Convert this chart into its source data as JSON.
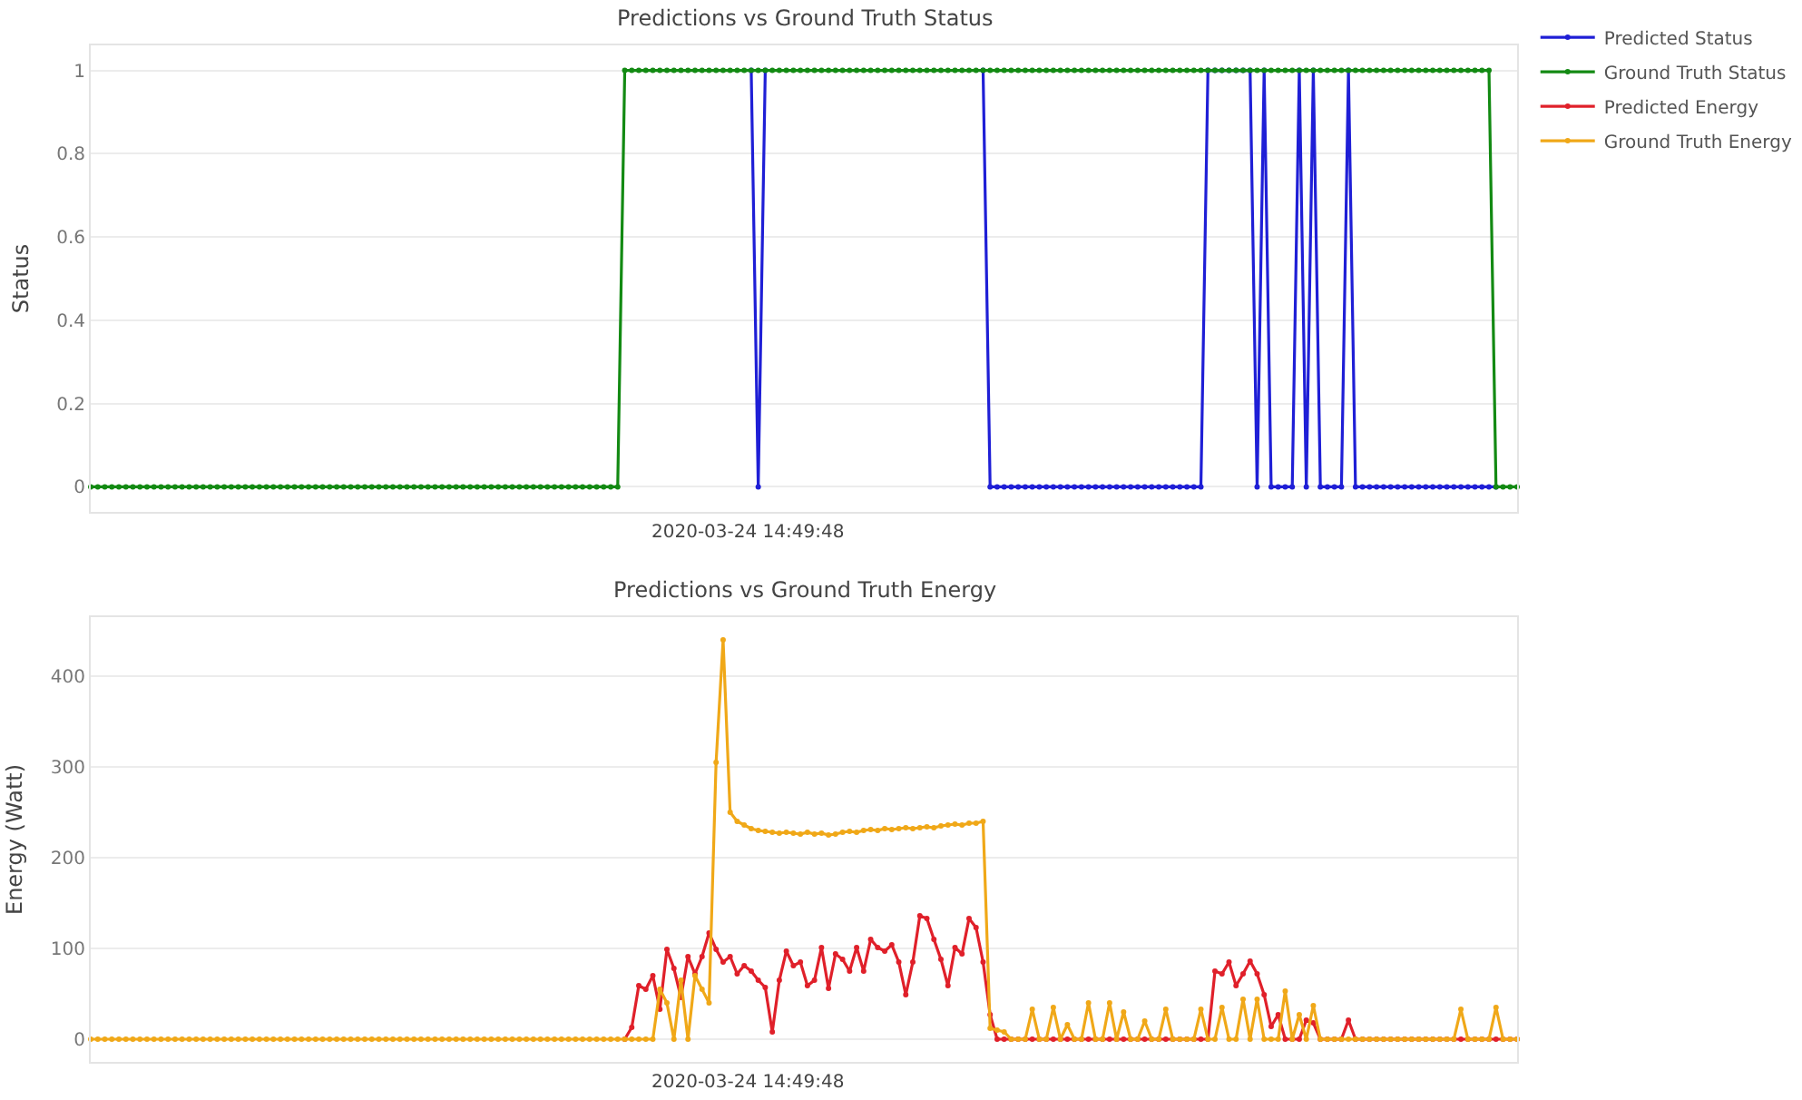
{
  "chart_data": [
    {
      "type": "line",
      "title": "Predictions vs Ground Truth Status",
      "ylabel": "Status",
      "categories": [
        null,
        null,
        null,
        null,
        null,
        null,
        null,
        null,
        null,
        null,
        null,
        null,
        null,
        null,
        null,
        null,
        null,
        null,
        null,
        null,
        null,
        null,
        null,
        null,
        null,
        null,
        null,
        null,
        null,
        null,
        null,
        null,
        null,
        null,
        null,
        null,
        null,
        null,
        null,
        null,
        null,
        null,
        null,
        null,
        null,
        null,
        null,
        null,
        null,
        null,
        null,
        null,
        null,
        null,
        null,
        null,
        null,
        null,
        null,
        null,
        null,
        null,
        null,
        null,
        null,
        null,
        null,
        null,
        null,
        null,
        null,
        null,
        null,
        null,
        null,
        null,
        null,
        null,
        null,
        null,
        null,
        null,
        null,
        null,
        null,
        null,
        null,
        null,
        null,
        null,
        null,
        null,
        null,
        null,
        null,
        null,
        null,
        null,
        null,
        null,
        null,
        null,
        null,
        null,
        null,
        null,
        null,
        null,
        null,
        null,
        null,
        null,
        null,
        null,
        null,
        null,
        null,
        null,
        null,
        null,
        null,
        null,
        null,
        null,
        null,
        null,
        null,
        null,
        null,
        null,
        null,
        null,
        null,
        null,
        null,
        null,
        null,
        null,
        null,
        null,
        null,
        null,
        null,
        null,
        null,
        null,
        null,
        null,
        null,
        null,
        null,
        null,
        null,
        null,
        null,
        null,
        null,
        null,
        null,
        null,
        null,
        null,
        null,
        null,
        null,
        null,
        null,
        null,
        null,
        null,
        null,
        null,
        null,
        null,
        null,
        null,
        null,
        null,
        null,
        null,
        null,
        null,
        null,
        null,
        null,
        null,
        null,
        null,
        null,
        null,
        null,
        null,
        null,
        null,
        null,
        null,
        null,
        null,
        null,
        null,
        null,
        null,
        null,
        null
      ],
      "ylim": [
        -0.06,
        1.06
      ],
      "yticks": [
        0,
        0.2,
        0.4,
        0.6,
        0.8,
        1
      ],
      "grid": "y",
      "legend": "top right",
      "tick_labels": "y",
      "marker": "circle",
      "line_style": "solid",
      "annotations": [
        "2020-03-24 14:49:48"
      ],
      "series": [
        {
          "name": "Predicted Status",
          "color": "#1f1fd6",
          "values": [
            null,
            null,
            null,
            null,
            null,
            null,
            null,
            null,
            null,
            null,
            null,
            null,
            null,
            null,
            null,
            null,
            null,
            null,
            null,
            null,
            null,
            null,
            null,
            null,
            null,
            null,
            null,
            null,
            null,
            null,
            null,
            null,
            null,
            null,
            null,
            null,
            null,
            null,
            null,
            null,
            null,
            null,
            null,
            null,
            null,
            null,
            null,
            null,
            null,
            null,
            null,
            null,
            null,
            null,
            null,
            null,
            null,
            null,
            null,
            null,
            null,
            null,
            null,
            null,
            null,
            null,
            null,
            null,
            null,
            null,
            null,
            null,
            null,
            null,
            null,
            null,
            null,
            null,
            null,
            null,
            null,
            null,
            null,
            null,
            null,
            null,
            null,
            null,
            null,
            null,
            null,
            null,
            null,
            null,
            1,
            0,
            1,
            null,
            null,
            null,
            null,
            null,
            null,
            null,
            null,
            null,
            null,
            null,
            null,
            null,
            null,
            null,
            null,
            null,
            null,
            null,
            null,
            null,
            null,
            null,
            null,
            null,
            null,
            null,
            null,
            null,
            null,
            1,
            0,
            0,
            0,
            0,
            0,
            0,
            0,
            0,
            0,
            0,
            0,
            0,
            0,
            0,
            0,
            0,
            0,
            0,
            0,
            0,
            0,
            0,
            0,
            0,
            0,
            0,
            0,
            0,
            0,
            0,
            0,
            1,
            1,
            1,
            1,
            1,
            1,
            1,
            0,
            1,
            0,
            0,
            0,
            0,
            1,
            0,
            1,
            0,
            0,
            0,
            0,
            1,
            0,
            0,
            0,
            0,
            0,
            0,
            0,
            0,
            0,
            0,
            0,
            0,
            0,
            0,
            0,
            0,
            0,
            0,
            0,
            0,
            0,
            null,
            null,
            null
          ]
        },
        {
          "name": "Ground Truth Status",
          "color": "#138a13",
          "values": [
            0,
            0,
            0,
            0,
            0,
            0,
            0,
            0,
            0,
            0,
            0,
            0,
            0,
            0,
            0,
            0,
            0,
            0,
            0,
            0,
            0,
            0,
            0,
            0,
            0,
            0,
            0,
            0,
            0,
            0,
            0,
            0,
            0,
            0,
            0,
            0,
            0,
            0,
            0,
            0,
            0,
            0,
            0,
            0,
            0,
            0,
            0,
            0,
            0,
            0,
            0,
            0,
            0,
            0,
            0,
            0,
            0,
            0,
            0,
            0,
            0,
            0,
            0,
            0,
            0,
            0,
            0,
            0,
            0,
            0,
            0,
            0,
            0,
            0,
            0,
            0,
            1,
            1,
            1,
            1,
            1,
            1,
            1,
            1,
            1,
            1,
            1,
            1,
            1,
            1,
            1,
            1,
            1,
            1,
            1,
            1,
            1,
            1,
            1,
            1,
            1,
            1,
            1,
            1,
            1,
            1,
            1,
            1,
            1,
            1,
            1,
            1,
            1,
            1,
            1,
            1,
            1,
            1,
            1,
            1,
            1,
            1,
            1,
            1,
            1,
            1,
            1,
            1,
            1,
            1,
            1,
            1,
            1,
            1,
            1,
            1,
            1,
            1,
            1,
            1,
            1,
            1,
            1,
            1,
            1,
            1,
            1,
            1,
            1,
            1,
            1,
            1,
            1,
            1,
            1,
            1,
            1,
            1,
            1,
            1,
            1,
            1,
            1,
            1,
            1,
            1,
            1,
            1,
            1,
            1,
            1,
            1,
            1,
            1,
            1,
            1,
            1,
            1,
            1,
            1,
            1,
            1,
            1,
            1,
            1,
            1,
            1,
            1,
            1,
            1,
            1,
            1,
            1,
            1,
            1,
            1,
            1,
            1,
            1,
            1,
            0,
            0,
            0,
            0
          ]
        }
      ]
    },
    {
      "type": "line",
      "title": "Predictions vs Ground Truth Energy",
      "ylabel": "Energy (Watt)",
      "categories": [
        null,
        null,
        null,
        null,
        null,
        null,
        null,
        null,
        null,
        null,
        null,
        null,
        null,
        null,
        null,
        null,
        null,
        null,
        null,
        null,
        null,
        null,
        null,
        null,
        null,
        null,
        null,
        null,
        null,
        null,
        null,
        null,
        null,
        null,
        null,
        null,
        null,
        null,
        null,
        null,
        null,
        null,
        null,
        null,
        null,
        null,
        null,
        null,
        null,
        null,
        null,
        null,
        null,
        null,
        null,
        null,
        null,
        null,
        null,
        null,
        null,
        null,
        null,
        null,
        null,
        null,
        null,
        null,
        null,
        null,
        null,
        null,
        null,
        null,
        null,
        null,
        null,
        null,
        null,
        null,
        null,
        null,
        null,
        null,
        null,
        null,
        null,
        null,
        null,
        null,
        null,
        null,
        null,
        null,
        null,
        null,
        null,
        null,
        null,
        null,
        null,
        null,
        null,
        null,
        null,
        null,
        null,
        null,
        null,
        null,
        null,
        null,
        null,
        null,
        null,
        null,
        null,
        null,
        null,
        null,
        null,
        null,
        null,
        null,
        null,
        null,
        null,
        null,
        null,
        null,
        null,
        null,
        null,
        null,
        null,
        null,
        null,
        null,
        null,
        null,
        null,
        null,
        null,
        null,
        null,
        null,
        null,
        null,
        null,
        null,
        null,
        null,
        null,
        null,
        null,
        null,
        null,
        null,
        null,
        null,
        null,
        null,
        null,
        null,
        null,
        null,
        null,
        null,
        null,
        null,
        null,
        null,
        null,
        null,
        null,
        null,
        null,
        null,
        null,
        null,
        null,
        null,
        null,
        null,
        null,
        null,
        null,
        null,
        null,
        null,
        null,
        null,
        null,
        null,
        null,
        null,
        null,
        null,
        null,
        null,
        null,
        null,
        null,
        null
      ],
      "ylim": [
        -25,
        465
      ],
      "yticks": [
        0,
        100,
        200,
        300,
        400
      ],
      "grid": "y",
      "legend": "top right",
      "tick_labels": "y",
      "marker": "circle",
      "line_style": "solid",
      "annotations": [
        "2020-03-24 14:49:48"
      ],
      "series": [
        {
          "name": "Predicted Energy",
          "color": "#e0202a",
          "values": [
            null,
            null,
            null,
            null,
            null,
            null,
            null,
            null,
            null,
            null,
            null,
            null,
            null,
            null,
            null,
            null,
            null,
            null,
            null,
            null,
            null,
            null,
            null,
            null,
            null,
            null,
            null,
            null,
            null,
            null,
            null,
            null,
            null,
            null,
            null,
            null,
            null,
            null,
            null,
            null,
            null,
            null,
            null,
            null,
            null,
            null,
            null,
            null,
            null,
            null,
            null,
            null,
            null,
            null,
            null,
            null,
            null,
            null,
            null,
            null,
            null,
            null,
            null,
            null,
            null,
            null,
            null,
            null,
            null,
            null,
            null,
            null,
            null,
            null,
            null,
            null,
            0,
            13,
            59,
            55,
            70,
            33,
            99,
            78,
            46,
            91,
            72,
            91,
            117,
            99,
            85,
            91,
            72,
            81,
            75,
            65,
            57,
            8,
            65,
            97,
            81,
            85,
            59,
            65,
            101,
            56,
            94,
            88,
            75,
            101,
            75,
            110,
            101,
            97,
            104,
            85,
            49,
            85,
            136,
            133,
            110,
            88,
            59,
            101,
            94,
            133,
            123,
            85,
            27,
            0,
            0,
            0,
            0,
            0,
            0,
            0,
            0,
            0,
            0,
            0,
            0,
            0,
            0,
            0,
            0,
            0,
            0,
            0,
            0,
            0,
            0,
            0,
            0,
            0,
            0,
            0,
            0,
            0,
            0,
            0,
            75,
            72,
            85,
            59,
            72,
            86,
            72,
            49,
            14,
            27,
            0,
            0,
            0,
            21,
            18,
            0,
            0,
            0,
            0,
            21,
            0,
            0,
            0,
            0,
            0,
            0,
            0,
            0,
            0,
            0,
            0,
            0,
            0,
            0,
            0,
            0,
            0,
            0,
            0,
            0,
            0,
            0,
            0,
            0
          ]
        },
        {
          "name": "Ground Truth Energy",
          "color": "#f0a818",
          "values": [
            0,
            0,
            0,
            0,
            0,
            0,
            0,
            0,
            0,
            0,
            0,
            0,
            0,
            0,
            0,
            0,
            0,
            0,
            0,
            0,
            0,
            0,
            0,
            0,
            0,
            0,
            0,
            0,
            0,
            0,
            0,
            0,
            0,
            0,
            0,
            0,
            0,
            0,
            0,
            0,
            0,
            0,
            0,
            0,
            0,
            0,
            0,
            0,
            0,
            0,
            0,
            0,
            0,
            0,
            0,
            0,
            0,
            0,
            0,
            0,
            0,
            0,
            0,
            0,
            0,
            0,
            0,
            0,
            0,
            0,
            0,
            0,
            0,
            0,
            0,
            0,
            0,
            0,
            0,
            0,
            0,
            55,
            40,
            0,
            65,
            0,
            70,
            55,
            40,
            305,
            440,
            250,
            240,
            236,
            232,
            230,
            229,
            228,
            227,
            228,
            227,
            226,
            228,
            226,
            227,
            225,
            226,
            228,
            229,
            228,
            230,
            231,
            230,
            232,
            231,
            232,
            233,
            232,
            233,
            234,
            233,
            235,
            236,
            237,
            236,
            238,
            238,
            240,
            12,
            10,
            8,
            0,
            0,
            0,
            33,
            0,
            0,
            35,
            0,
            16,
            0,
            0,
            40,
            0,
            0,
            40,
            0,
            30,
            0,
            0,
            20,
            0,
            0,
            33,
            0,
            0,
            0,
            0,
            33,
            0,
            0,
            35,
            0,
            0,
            44,
            0,
            44,
            0,
            0,
            0,
            53,
            0,
            27,
            0,
            37,
            0,
            0,
            0,
            0,
            0,
            0,
            0,
            0,
            0,
            0,
            0,
            0,
            0,
            0,
            0,
            0,
            0,
            0,
            0,
            0,
            33,
            0,
            0,
            0,
            0,
            35,
            0,
            0,
            0
          ]
        }
      ]
    }
  ]
}
